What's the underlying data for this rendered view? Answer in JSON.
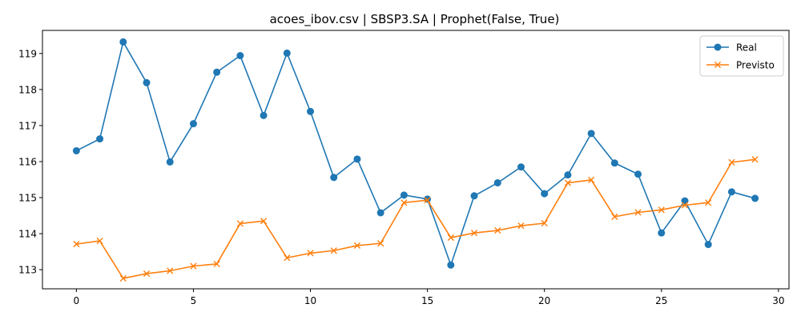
{
  "chart_data": {
    "type": "line",
    "title": "acoes_ibov.csv | SBSP3.SA | Prophet(False, True)",
    "xlabel": "",
    "ylabel": "",
    "x": [
      0,
      1,
      2,
      3,
      4,
      5,
      6,
      7,
      8,
      9,
      10,
      11,
      12,
      13,
      14,
      15,
      16,
      17,
      18,
      19,
      20,
      21,
      22,
      23,
      24,
      25,
      26,
      27,
      28,
      29
    ],
    "xlim": [
      -1.45,
      30.45
    ],
    "ylim": [
      112.47,
      119.64
    ],
    "x_ticks": [
      0,
      5,
      10,
      15,
      20,
      25,
      30
    ],
    "y_ticks": [
      113,
      114,
      115,
      116,
      117,
      118,
      119
    ],
    "grid": false,
    "legend_position": "top-right",
    "series": [
      {
        "name": "Real",
        "color": "#1f77b4",
        "marker": "circle",
        "values": [
          116.3,
          116.63,
          119.32,
          118.19,
          115.99,
          117.05,
          118.48,
          118.94,
          117.28,
          119.01,
          117.39,
          115.56,
          116.07,
          114.58,
          115.07,
          114.96,
          113.13,
          115.05,
          115.41,
          115.85,
          115.11,
          115.63,
          116.78,
          115.96,
          115.65,
          114.02,
          114.91,
          113.7,
          115.16,
          114.98
        ]
      },
      {
        "name": "Previsto",
        "color": "#ff7f0e",
        "marker": "x",
        "values": [
          113.71,
          113.8,
          112.76,
          112.89,
          112.97,
          113.1,
          113.16,
          114.28,
          114.35,
          113.33,
          113.46,
          113.53,
          113.67,
          113.73,
          114.86,
          114.93,
          113.89,
          114.02,
          114.09,
          114.22,
          114.29,
          115.41,
          115.49,
          114.47,
          114.59,
          114.66,
          114.79,
          114.86,
          115.98,
          116.06
        ]
      }
    ]
  }
}
